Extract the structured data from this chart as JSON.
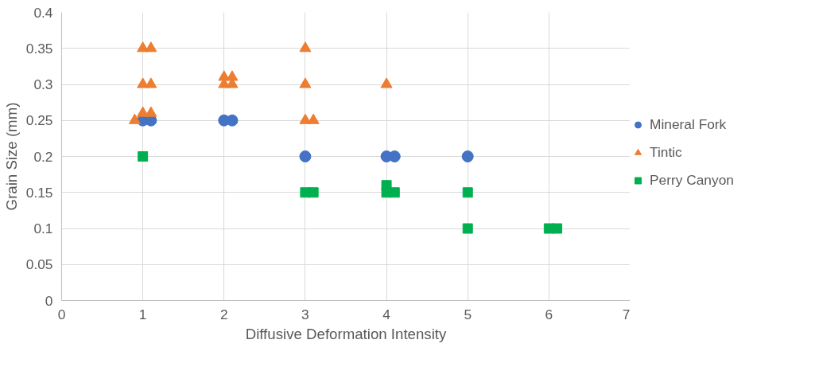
{
  "chart_data": {
    "type": "scatter",
    "xlabel": "Diffusive Deformation Intensity",
    "ylabel": "Grain Size (mm)",
    "xlim": [
      0,
      7
    ],
    "xticks": [
      0,
      1,
      2,
      3,
      4,
      5,
      6,
      7
    ],
    "ylim": [
      0,
      0.4
    ],
    "yticks": [
      0,
      0.05,
      0.1,
      0.15,
      0.2,
      0.25,
      0.3,
      0.35,
      0.4
    ],
    "grid": true,
    "legend": "right",
    "series": [
      {
        "name": "Mineral Fork",
        "color": "#4472c4",
        "marker": "circle",
        "x": [
          1,
          1.1,
          2,
          2.1,
          3,
          4,
          4.1,
          5
        ],
        "values": [
          0.25,
          0.25,
          0.25,
          0.25,
          0.2,
          0.2,
          0.2,
          0.2
        ]
      },
      {
        "name": "Tintic",
        "color": "#ed7d31",
        "marker": "triangle",
        "x": [
          0.9,
          1,
          1.1,
          1,
          1.1,
          1,
          1.1,
          2,
          2.1,
          2,
          2.1,
          3,
          3,
          3,
          3.1,
          4
        ],
        "values": [
          0.25,
          0.26,
          0.26,
          0.3,
          0.3,
          0.35,
          0.35,
          0.31,
          0.31,
          0.3,
          0.3,
          0.35,
          0.3,
          0.25,
          0.25,
          0.3
        ]
      },
      {
        "name": "Perry Canyon",
        "color": "#00b050",
        "marker": "square",
        "x": [
          1,
          3,
          3.1,
          4,
          4,
          4.1,
          5,
          5,
          6,
          6.1
        ],
        "values": [
          0.2,
          0.15,
          0.15,
          0.16,
          0.15,
          0.15,
          0.15,
          0.1,
          0.1,
          0.1
        ]
      }
    ]
  }
}
